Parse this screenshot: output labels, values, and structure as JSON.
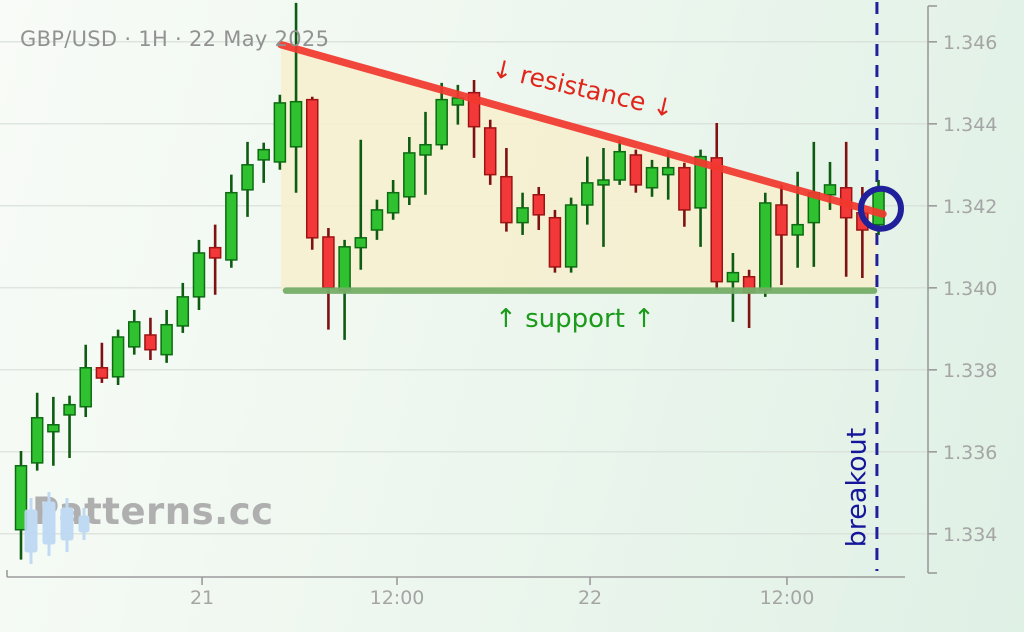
{
  "header": {
    "title": "GBP/USD · 1H · 22 May 2025"
  },
  "watermark": {
    "brand": "Patterns.cc",
    "icon": "candlestick-logo-icon"
  },
  "annotations": {
    "resistance_label": "↓ resistance ↓",
    "support_label": "↑ support ↑",
    "breakout_label": "breakout"
  },
  "colors": {
    "up_body": "#2fc12f",
    "up_edge": "#0d6b12",
    "up_wick": "#0d5c12",
    "down_body": "#f23838",
    "down_edge": "#9c1414",
    "down_wick": "#7e1111",
    "resistance_line": "#f2392e",
    "support_line": "#76ae68",
    "breakout_blue": "#20209b",
    "pattern_fill": "#f6efcf",
    "gridline": "#d6ded6",
    "axis": "#9b9b9b",
    "tick_label": "#a5a5a5"
  },
  "chart_data": {
    "type": "candlestick",
    "symbol": "GBP/USD",
    "timeframe": "1H",
    "date": "22 May 2025",
    "grid": "horizontal-only",
    "y_axis": {
      "labels": [
        "1.346",
        "1.344",
        "1.342",
        "1.340",
        "1.338",
        "1.336",
        "1.334"
      ],
      "tick_values": [
        1.346,
        1.344,
        1.342,
        1.34,
        1.338,
        1.336,
        1.334
      ],
      "ylim": [
        1.333,
        1.347
      ]
    },
    "x_axis": {
      "ticks": [
        {
          "label": "21",
          "index": 11.19
        },
        {
          "label": "12:00",
          "index": 23.24
        },
        {
          "label": "22",
          "index": 35.17
        },
        {
          "label": "12:00",
          "index": 47.34
        }
      ]
    },
    "support": {
      "price": 1.33998,
      "start_index": 16.38,
      "end_index": 52.72
    },
    "resistance_trendline": {
      "start_index": 16.07,
      "start_price": 1.34593,
      "end_index": 53.27,
      "end_price": 1.3418
    },
    "breakout_line_index": 52.9,
    "circle": {
      "index": 53.15,
      "price": 1.34193,
      "radius": 20
    },
    "candles_format": "[open, high, low, close]",
    "candles": [
      [
        1.3341,
        1.33602,
        1.33337,
        1.33566
      ],
      [
        1.33573,
        1.33744,
        1.33554,
        1.33683
      ],
      [
        1.33649,
        1.33734,
        1.33566,
        1.33666
      ],
      [
        1.3369,
        1.33737,
        1.33585,
        1.33715
      ],
      [
        1.3371,
        1.33861,
        1.33685,
        1.33805
      ],
      [
        1.33805,
        1.33866,
        1.33768,
        1.3378
      ],
      [
        1.33783,
        1.33898,
        1.33763,
        1.3388
      ],
      [
        1.33856,
        1.33946,
        1.33837,
        1.33917
      ],
      [
        1.33885,
        1.33927,
        1.33824,
        1.33849
      ],
      [
        1.33837,
        1.33946,
        1.33817,
        1.3391
      ],
      [
        1.33907,
        1.34012,
        1.3389,
        1.33978
      ],
      [
        1.33978,
        1.34117,
        1.33946,
        1.34085
      ],
      [
        1.34098,
        1.34154,
        1.33983,
        1.34073
      ],
      [
        1.34068,
        1.34276,
        1.34049,
        1.34232
      ],
      [
        1.34239,
        1.34356,
        1.34173,
        1.343
      ],
      [
        1.34312,
        1.34354,
        1.34256,
        1.34337
      ],
      [
        1.34307,
        1.34471,
        1.34288,
        1.34451
      ],
      [
        1.34344,
        1.34695,
        1.34232,
        1.34454
      ],
      [
        1.34459,
        1.34466,
        1.34093,
        1.34122
      ],
      [
        1.34124,
        1.34146,
        1.33898,
        1.34
      ],
      [
        1.33993,
        1.34117,
        1.33873,
        1.341
      ],
      [
        1.34098,
        1.34361,
        1.34044,
        1.34122
      ],
      [
        1.34141,
        1.34215,
        1.34117,
        1.3419
      ],
      [
        1.34183,
        1.34263,
        1.34166,
        1.34232
      ],
      [
        1.34222,
        1.34368,
        1.34202,
        1.34329
      ],
      [
        1.34324,
        1.34429,
        1.34227,
        1.34349
      ],
      [
        1.34349,
        1.345,
        1.34337,
        1.34459
      ],
      [
        1.34446,
        1.34495,
        1.34398,
        1.34463
      ],
      [
        1.34476,
        1.34507,
        1.34317,
        1.34393
      ],
      [
        1.3439,
        1.3441,
        1.34251,
        1.34276
      ],
      [
        1.34271,
        1.34341,
        1.34137,
        1.34159
      ],
      [
        1.34159,
        1.34232,
        1.34129,
        1.34195
      ],
      [
        1.34227,
        1.34246,
        1.34141,
        1.34178
      ],
      [
        1.34171,
        1.3419,
        1.34037,
        1.34051
      ],
      [
        1.34051,
        1.3422,
        1.34037,
        1.34202
      ],
      [
        1.34202,
        1.3432,
        1.34154,
        1.34256
      ],
      [
        1.34251,
        1.34341,
        1.341,
        1.34263
      ],
      [
        1.34263,
        1.34361,
        1.34251,
        1.34332
      ],
      [
        1.34324,
        1.34337,
        1.34232,
        1.34251
      ],
      [
        1.34244,
        1.34312,
        1.34222,
        1.34293
      ],
      [
        1.34276,
        1.34332,
        1.34215,
        1.34293
      ],
      [
        1.34293,
        1.34305,
        1.34149,
        1.3419
      ],
      [
        1.34195,
        1.34337,
        1.341,
        1.3432
      ],
      [
        1.34317,
        1.34402,
        1.33995,
        1.34015
      ],
      [
        1.34015,
        1.34085,
        1.33917,
        1.34037
      ],
      [
        1.34027,
        1.34044,
        1.33902,
        1.33988
      ],
      [
        1.33995,
        1.34232,
        1.33978,
        1.34207
      ],
      [
        1.34202,
        1.34251,
        1.34007,
        1.34129
      ],
      [
        1.34129,
        1.34283,
        1.34049,
        1.34154
      ],
      [
        1.34159,
        1.34356,
        1.34051,
        1.34232
      ],
      [
        1.34227,
        1.34307,
        1.3419,
        1.34251
      ],
      [
        1.34244,
        1.34356,
        1.34027,
        1.34171
      ],
      [
        1.34183,
        1.34246,
        1.34024,
        1.34141
      ],
      [
        1.34154,
        1.34263,
        1.34129,
        1.34239
      ]
    ]
  }
}
